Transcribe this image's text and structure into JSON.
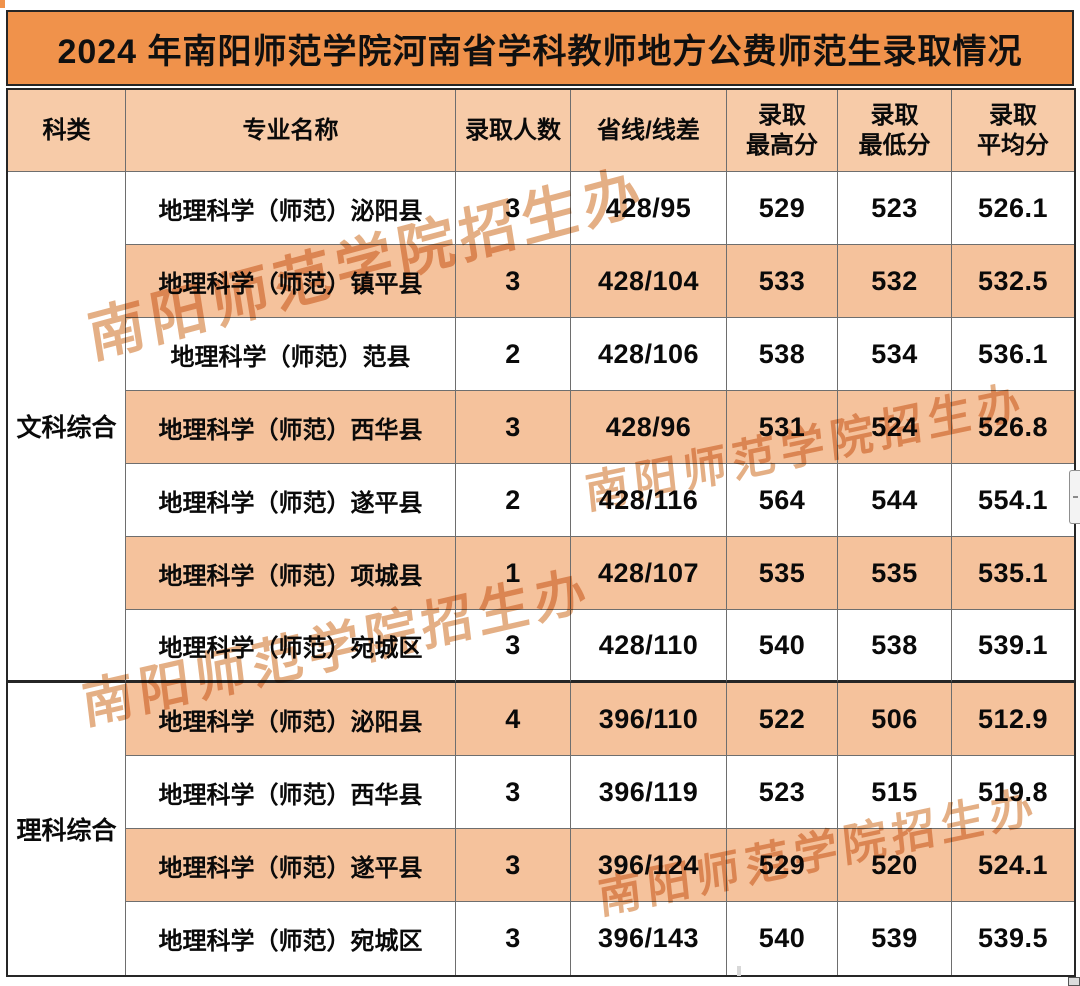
{
  "title": {
    "text": "2024 年南阳师范学院河南省学科教师地方公费师范生录取情况"
  },
  "colors": {
    "title_bg": "#F0924B",
    "header_bg": "#F7CBA8",
    "row_alt_bg": "#F5C29C",
    "border_dark": "#262626",
    "border_inner": "#6E6E6E",
    "watermark": "#DE9E6A"
  },
  "watermark": {
    "text": "南阳师范学院招生办"
  },
  "table": {
    "headers": [
      "科类",
      "专业名称",
      "录取人数",
      "省线/线差",
      "录取\n最高分",
      "录取\n最低分",
      "录取\n平均分"
    ],
    "sections": [
      {
        "category": "文科综合",
        "rows": [
          {
            "major": "地理科学（师范）泌阳县",
            "count": "3",
            "province_line": "428/95",
            "max": "529",
            "min": "523",
            "avg": "526.1",
            "shaded": false
          },
          {
            "major": "地理科学（师范）镇平县",
            "count": "3",
            "province_line": "428/104",
            "max": "533",
            "min": "532",
            "avg": "532.5",
            "shaded": true
          },
          {
            "major": "地理科学（师范）范县",
            "count": "2",
            "province_line": "428/106",
            "max": "538",
            "min": "534",
            "avg": "536.1",
            "shaded": false
          },
          {
            "major": "地理科学（师范）西华县",
            "count": "3",
            "province_line": "428/96",
            "max": "531",
            "min": "524",
            "avg": "526.8",
            "shaded": true
          },
          {
            "major": "地理科学（师范）遂平县",
            "count": "2",
            "province_line": "428/116",
            "max": "564",
            "min": "544",
            "avg": "554.1",
            "shaded": false
          },
          {
            "major": "地理科学（师范）项城县",
            "count": "1",
            "province_line": "428/107",
            "max": "535",
            "min": "535",
            "avg": "535.1",
            "shaded": true
          },
          {
            "major": "地理科学（师范）宛城区",
            "count": "3",
            "province_line": "428/110",
            "max": "540",
            "min": "538",
            "avg": "539.1",
            "shaded": false
          }
        ]
      },
      {
        "category": "理科综合",
        "rows": [
          {
            "major": "地理科学（师范）泌阳县",
            "count": "4",
            "province_line": "396/110",
            "max": "522",
            "min": "506",
            "avg": "512.9",
            "shaded": true
          },
          {
            "major": "地理科学（师范）西华县",
            "count": "3",
            "province_line": "396/119",
            "max": "523",
            "min": "515",
            "avg": "519.8",
            "shaded": false
          },
          {
            "major": "地理科学（师范）遂平县",
            "count": "3",
            "province_line": "396/124",
            "max": "529",
            "min": "520",
            "avg": "524.1",
            "shaded": true
          },
          {
            "major": "地理科学（师范）宛城区",
            "count": "3",
            "province_line": "396/143",
            "max": "540",
            "min": "539",
            "avg": "539.5",
            "shaded": false
          }
        ]
      }
    ]
  },
  "chart_data": {
    "type": "table",
    "title": "2024 年南阳师范学院河南省学科教师地方公费师范生录取情况",
    "columns": [
      "科类",
      "专业名称",
      "录取人数",
      "省线/线差",
      "录取最高分",
      "录取最低分",
      "录取平均分"
    ],
    "rows": [
      [
        "文科综合",
        "地理科学（师范）泌阳县",
        3,
        "428/95",
        529,
        523,
        526.1
      ],
      [
        "文科综合",
        "地理科学（师范）镇平县",
        3,
        "428/104",
        533,
        532,
        532.5
      ],
      [
        "文科综合",
        "地理科学（师范）范县",
        2,
        "428/106",
        538,
        534,
        536.1
      ],
      [
        "文科综合",
        "地理科学（师范）西华县",
        3,
        "428/96",
        531,
        524,
        526.8
      ],
      [
        "文科综合",
        "地理科学（师范）遂平县",
        2,
        "428/116",
        564,
        544,
        554.1
      ],
      [
        "文科综合",
        "地理科学（师范）项城县",
        1,
        "428/107",
        535,
        535,
        535.1
      ],
      [
        "文科综合",
        "地理科学（师范）宛城区",
        3,
        "428/110",
        540,
        538,
        539.1
      ],
      [
        "理科综合",
        "地理科学（师范）泌阳县",
        4,
        "396/110",
        522,
        506,
        512.9
      ],
      [
        "理科综合",
        "地理科学（师范）西华县",
        3,
        "396/119",
        523,
        515,
        519.8
      ],
      [
        "理科综合",
        "地理科学（师范）遂平县",
        3,
        "396/124",
        529,
        520,
        524.1
      ],
      [
        "理科综合",
        "地理科学（师范）宛城区",
        3,
        "396/143",
        540,
        539,
        539.5
      ]
    ]
  }
}
